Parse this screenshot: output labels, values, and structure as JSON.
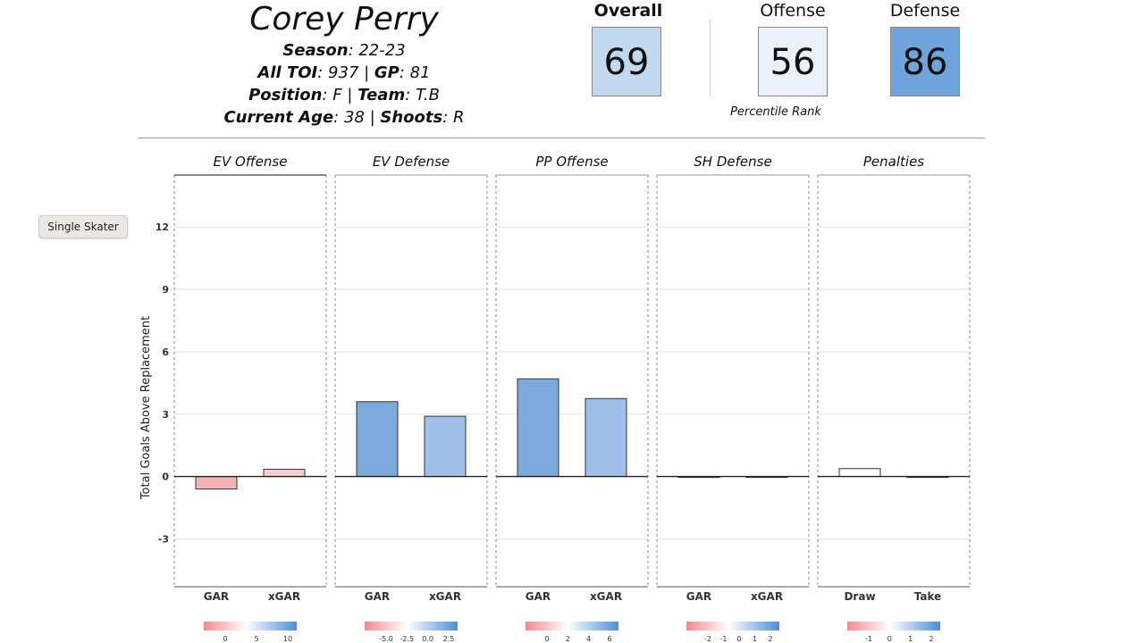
{
  "player": {
    "name": "Corey Perry",
    "season_key": "Season",
    "season_val": ": 22-23",
    "toi_key": "All TOI",
    "toi_val": ": 937 | ",
    "gp_key": "GP",
    "gp_val": ": 81",
    "pos_key": "Position",
    "pos_val": ": F | ",
    "team_key": "Team",
    "team_val": ": T.B",
    "age_key": "Current Age",
    "age_val": ": 38 | ",
    "shoots_key": "Shoots",
    "shoots_val": ": R"
  },
  "ranks": {
    "overall_label": "Overall",
    "overall_value": "69",
    "offense_label": "Offense",
    "offense_value": "56",
    "defense_label": "Defense",
    "defense_value": "86",
    "footnote": "Percentile Rank",
    "colors": {
      "overall": "#c2d8ef",
      "offense": "#eaf1fa",
      "defense": "#6fa5dc"
    }
  },
  "controls": {
    "single_skater_label": "Single Skater"
  },
  "chart_data": {
    "type": "bar",
    "ylabel": "Total Goals Above Replacement",
    "ylim": [
      -5.3,
      14.5
    ],
    "yticks": [
      -3,
      0,
      3,
      6,
      9,
      12
    ],
    "grid": true,
    "panels": [
      {
        "title": "EV Offense",
        "categories": [
          "GAR",
          "xGAR"
        ],
        "values": [
          -0.6,
          0.35
        ],
        "colors": [
          "#f6b4b6",
          "#f6cfd1"
        ],
        "legend_ticks": [
          "0",
          "5",
          "10"
        ]
      },
      {
        "title": "EV Defense",
        "categories": [
          "GAR",
          "xGAR"
        ],
        "values": [
          3.6,
          2.9
        ],
        "colors": [
          "#7ea9dd",
          "#9fc0e8"
        ],
        "legend_ticks": [
          "-5.0",
          "-2.5",
          "0.0",
          "2.5"
        ]
      },
      {
        "title": "PP Offense",
        "categories": [
          "GAR",
          "xGAR"
        ],
        "values": [
          4.7,
          3.75
        ],
        "colors": [
          "#7ea9dd",
          "#9fc0e8"
        ],
        "legend_ticks": [
          "0",
          "2",
          "4",
          "6"
        ]
      },
      {
        "title": "SH Defense",
        "categories": [
          "GAR",
          "xGAR"
        ],
        "values": [
          0.0,
          0.0
        ],
        "colors": [
          "#f2f2f2",
          "#f2f2f2"
        ],
        "legend_ticks": [
          "-2",
          "-1",
          "0",
          "1",
          "2"
        ]
      },
      {
        "title": "Penalties",
        "categories": [
          "Draw",
          "Take"
        ],
        "values": [
          0.38,
          0.0
        ],
        "colors": [
          "#ffffff",
          "#f2f2f2"
        ],
        "legend_ticks": [
          "-1",
          "0",
          "1",
          "2"
        ]
      }
    ]
  }
}
